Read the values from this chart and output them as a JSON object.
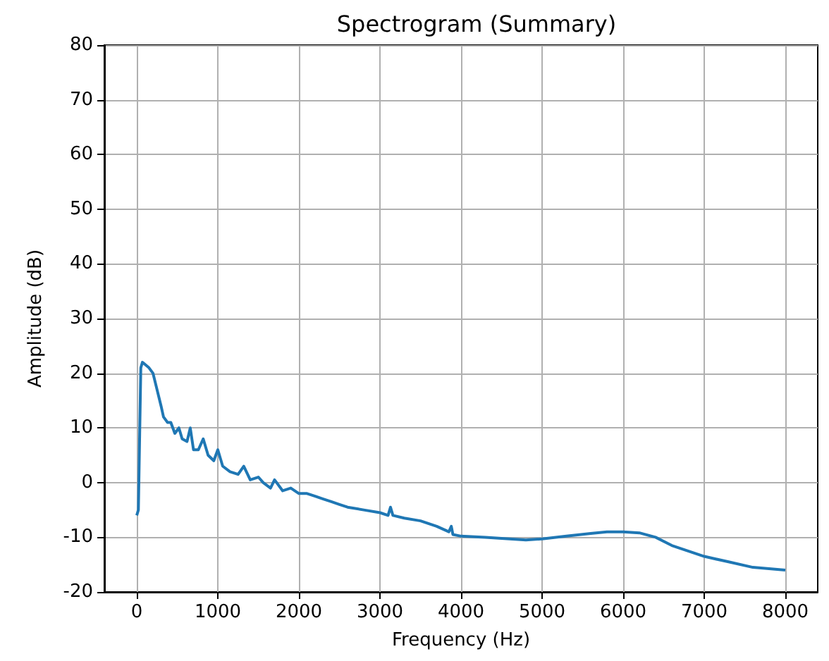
{
  "chart_data": {
    "type": "line",
    "title": "Spectrogram (Summary)",
    "xlabel": "Frequency (Hz)",
    "ylabel": "Amplitude (dB)",
    "x": [
      0,
      20,
      50,
      70,
      150,
      200,
      250,
      300,
      330,
      380,
      420,
      470,
      520,
      560,
      620,
      660,
      700,
      760,
      820,
      880,
      950,
      1000,
      1060,
      1150,
      1250,
      1320,
      1400,
      1500,
      1560,
      1650,
      1700,
      1800,
      1900,
      2000,
      2100,
      2200,
      2300,
      2400,
      2500,
      2600,
      2800,
      3000,
      3100,
      3130,
      3160,
      3300,
      3500,
      3700,
      3850,
      3880,
      3900,
      4000,
      4300,
      4600,
      4800,
      5000,
      5300,
      5600,
      5800,
      6000,
      6200,
      6400,
      6600,
      6800,
      7000,
      7300,
      7600,
      8000
    ],
    "series": [
      {
        "color": "#1f77b4",
        "values": [
          -6,
          -5,
          21,
          22,
          21,
          20,
          17,
          14,
          12,
          11,
          11,
          9,
          10,
          8,
          7.5,
          10,
          6,
          6,
          8,
          5,
          4,
          6,
          3,
          2,
          1.5,
          3,
          0.5,
          1,
          0,
          -1,
          0.5,
          -1.5,
          -1,
          -2,
          -2,
          -2.5,
          -3,
          -3.5,
          -4,
          -4.5,
          -5,
          -5.5,
          -6,
          -4.5,
          -6,
          -6.5,
          -7,
          -8,
          -9,
          -8,
          -9.5,
          -9.8,
          -10,
          -10.3,
          -10.5,
          -10.3,
          -9.8,
          -9.3,
          -9,
          -9,
          -9.2,
          -10,
          -11.5,
          -12.5,
          -13.5,
          -14.5,
          -15.5,
          -16
        ]
      }
    ],
    "xlim": [
      -400,
      8400
    ],
    "xticks": [
      0,
      1000,
      2000,
      3000,
      4000,
      5000,
      6000,
      7000,
      8000
    ],
    "ylim": [
      -20,
      80
    ],
    "yticks": [
      -20,
      -10,
      0,
      10,
      20,
      30,
      40,
      50,
      60,
      70,
      80
    ],
    "grid": true,
    "marker": "none",
    "line_style": "solid"
  }
}
